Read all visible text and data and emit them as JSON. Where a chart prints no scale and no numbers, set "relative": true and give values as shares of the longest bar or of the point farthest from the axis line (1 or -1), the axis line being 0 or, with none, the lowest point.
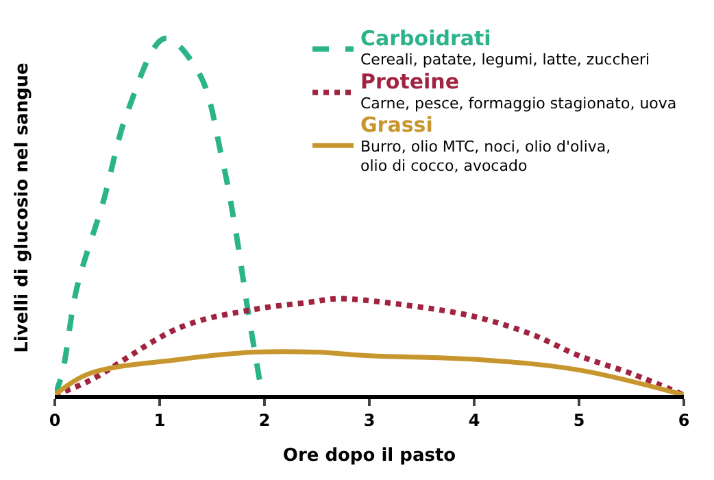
{
  "chart_data": {
    "type": "line",
    "relative": true,
    "xlabel": "Ore dopo il pasto",
    "ylabel": "Livelli di glucosio nel sangue",
    "xlim": [
      0,
      6
    ],
    "xticks": [
      0,
      1,
      2,
      3,
      4,
      5,
      6
    ],
    "legend": "top right",
    "marker": "none",
    "annotations": [
      "Cereali, patate, legumi, latte, zuccheri",
      "Carne, pesce, formaggio stagionato, uova",
      "Burro, olio MTC, noci, olio d'oliva,\nolio di cocco, avocado"
    ],
    "series": [
      {
        "name": "Carboidrati",
        "color": "#2bb38a",
        "line_style": "dashed",
        "x": [
          0,
          0.07,
          0.21,
          0.46,
          0.7,
          1.05,
          1.38,
          1.59,
          1.72,
          1.84,
          1.96
        ],
        "values": [
          0,
          0.06,
          0.3,
          0.54,
          0.8,
          1,
          0.9,
          0.67,
          0.47,
          0.24,
          0.03
        ]
      },
      {
        "name": "Proteine",
        "color": "#a0233f",
        "line_style": "dotted",
        "x": [
          0,
          0.33,
          1.2,
          1.9,
          2.43,
          2.7,
          3.4,
          4,
          4.55,
          5,
          5.5,
          6
        ],
        "values": [
          0,
          0.04,
          0.19,
          0.24,
          0.26,
          0.27,
          0.25,
          0.22,
          0.17,
          0.11,
          0.06,
          0
        ]
      },
      {
        "name": "Grassi",
        "color": "#c8962e",
        "line_style": "solid",
        "x": [
          0,
          0.33,
          1.2,
          1.9,
          2.5,
          3,
          4,
          5,
          6
        ],
        "values": [
          0,
          0.06,
          0.1,
          0.12,
          0.12,
          0.11,
          0.1,
          0.07,
          0
        ]
      }
    ]
  }
}
